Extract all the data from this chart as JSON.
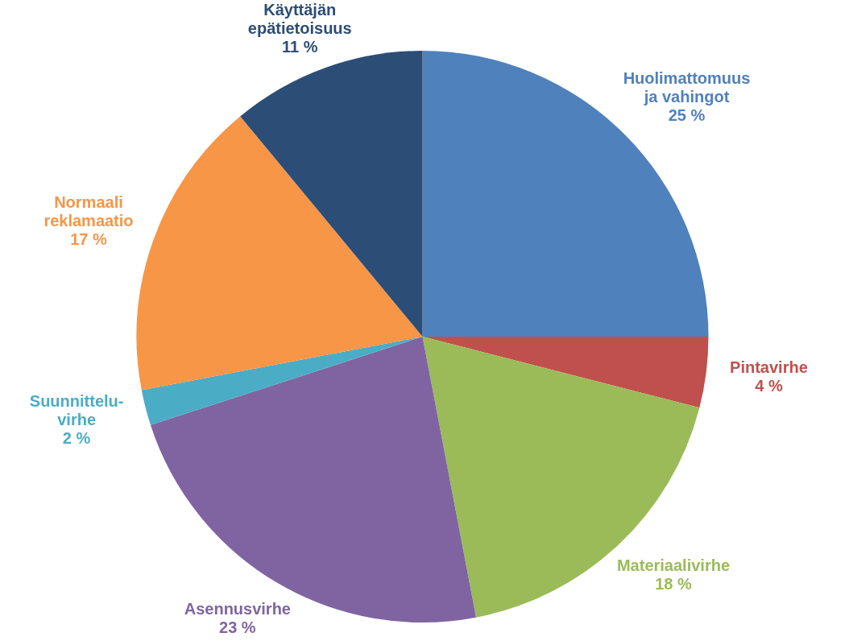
{
  "chart_data": {
    "type": "pie",
    "categories": [
      "Huolimattomuus ja vahingot",
      "Pintavirhe",
      "Materiaalivirhe",
      "Asennusvirhe",
      "Suunnittelu-virhe",
      "Normaali reklamaatio",
      "Käyttäjän epätietoisuus"
    ],
    "values": [
      25,
      4,
      18,
      23,
      2,
      17,
      11
    ],
    "value_labels": [
      "25 %",
      "4 %",
      "18 %",
      "23 %",
      "2 %",
      "17 %",
      "11 %"
    ],
    "colors": [
      "#4f81bd",
      "#c0504d",
      "#9bbb59",
      "#8064a2",
      "#4bacc6",
      "#f79646",
      "#2c4d75"
    ],
    "legend": false
  }
}
